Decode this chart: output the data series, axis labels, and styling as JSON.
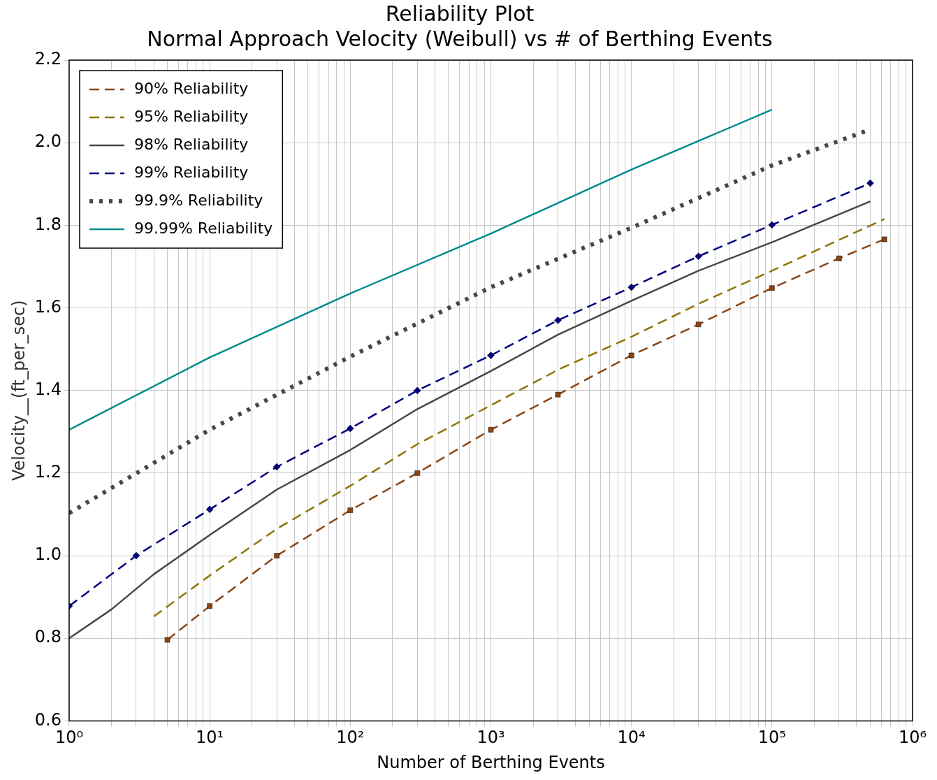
{
  "chart_data": {
    "type": "line",
    "title": "Reliability Plot",
    "subtitle": "Normal Approach Velocity (Weibull) vs # of Berthing Events",
    "xlabel": "Number of Berthing Events",
    "ylabel": "Velocity__(ft_per_sec)",
    "log": "x",
    "grid": true,
    "legend": "top left",
    "xlim": [
      1,
      1000000
    ],
    "ylim": [
      0.6,
      2.2
    ],
    "xticks": [
      {
        "value": 1,
        "label": "10⁰"
      },
      {
        "value": 2,
        "label": null
      },
      {
        "value": 3,
        "label": null
      },
      {
        "value": 4,
        "label": null
      },
      {
        "value": 5,
        "label": null
      },
      {
        "value": 6,
        "label": null
      },
      {
        "value": 7,
        "label": null
      },
      {
        "value": 8,
        "label": null
      },
      {
        "value": 9,
        "label": null
      },
      {
        "value": 10,
        "label": "10¹"
      },
      {
        "value": 20,
        "label": null
      },
      {
        "value": 30,
        "label": null
      },
      {
        "value": 40,
        "label": null
      },
      {
        "value": 50,
        "label": null
      },
      {
        "value": 60,
        "label": null
      },
      {
        "value": 70,
        "label": null
      },
      {
        "value": 80,
        "label": null
      },
      {
        "value": 90,
        "label": null
      },
      {
        "value": 100,
        "label": "10²"
      },
      {
        "value": 200,
        "label": null
      },
      {
        "value": 300,
        "label": null
      },
      {
        "value": 400,
        "label": null
      },
      {
        "value": 500,
        "label": null
      },
      {
        "value": 600,
        "label": null
      },
      {
        "value": 700,
        "label": null
      },
      {
        "value": 800,
        "label": null
      },
      {
        "value": 900,
        "label": null
      },
      {
        "value": 1000,
        "label": "10³"
      },
      {
        "value": 2000,
        "label": null
      },
      {
        "value": 3000,
        "label": null
      },
      {
        "value": 4000,
        "label": null
      },
      {
        "value": 5000,
        "label": null
      },
      {
        "value": 6000,
        "label": null
      },
      {
        "value": 7000,
        "label": null
      },
      {
        "value": 8000,
        "label": null
      },
      {
        "value": 9000,
        "label": null
      },
      {
        "value": 10000,
        "label": "10⁴"
      },
      {
        "value": 20000,
        "label": null
      },
      {
        "value": 30000,
        "label": null
      },
      {
        "value": 40000,
        "label": null
      },
      {
        "value": 50000,
        "label": null
      },
      {
        "value": 60000,
        "label": null
      },
      {
        "value": 70000,
        "label": null
      },
      {
        "value": 80000,
        "label": null
      },
      {
        "value": 90000,
        "label": null
      },
      {
        "value": 100000,
        "label": "10⁵"
      },
      {
        "value": 200000,
        "label": null
      },
      {
        "value": 300000,
        "label": null
      },
      {
        "value": 400000,
        "label": null
      },
      {
        "value": 500000,
        "label": null
      },
      {
        "value": 600000,
        "label": null
      },
      {
        "value": 700000,
        "label": null
      },
      {
        "value": 800000,
        "label": null
      },
      {
        "value": 900000,
        "label": null
      },
      {
        "value": 1000000,
        "label": "10⁶"
      }
    ],
    "yticks": [
      0.6,
      0.8,
      {
        "value": 1,
        "label": "1.0"
      },
      1.2,
      1.4,
      1.6,
      1.8,
      {
        "value": 2,
        "label": "2.0"
      },
      2.2
    ],
    "series": [
      {
        "name": "90% Reliability",
        "color": "#8b4513",
        "marker": "square",
        "line_style": "dashed",
        "x": [
          5,
          10,
          30,
          100,
          300,
          1000,
          3000,
          10000,
          30000,
          100000,
          300000,
          630000
        ],
        "values": [
          0.796,
          0.878,
          1.0,
          1.11,
          1.2,
          1.305,
          1.39,
          1.485,
          1.56,
          1.648,
          1.72,
          1.766
        ]
      },
      {
        "name": "95% Reliability",
        "color": "#8b7500",
        "marker": "none",
        "line_style": "dashed",
        "x": [
          4,
          10,
          30,
          100,
          300,
          1000,
          3000,
          10000,
          30000,
          100000,
          630000
        ],
        "values": [
          0.853,
          0.952,
          1.065,
          1.169,
          1.27,
          1.364,
          1.45,
          1.53,
          1.61,
          1.69,
          1.815
        ]
      },
      {
        "name": "98% Reliability",
        "color": "#474747",
        "marker": "none",
        "line_style": "solid",
        "x": [
          1,
          2,
          4,
          10,
          30,
          100,
          300,
          1000,
          3000,
          10000,
          30000,
          100000,
          500000
        ],
        "values": [
          0.8,
          0.87,
          0.955,
          1.05,
          1.16,
          1.256,
          1.355,
          1.447,
          1.535,
          1.617,
          1.69,
          1.759,
          1.858
        ]
      },
      {
        "name": "99% Reliability",
        "color": "#000080",
        "marker": "diamond",
        "line_style": "dashed",
        "x": [
          1,
          3,
          10,
          30,
          100,
          300,
          1000,
          3000,
          10000,
          30000,
          100000,
          500000
        ],
        "values": [
          0.878,
          1.0,
          1.112,
          1.215,
          1.308,
          1.4,
          1.485,
          1.57,
          1.65,
          1.725,
          1.801,
          1.902
        ]
      },
      {
        "name": "99.9% Reliability",
        "color": "#474747",
        "marker": "none",
        "line_style": "dotted",
        "x": [
          1,
          10,
          100,
          1000,
          10000,
          100000,
          500000
        ],
        "values": [
          1.103,
          1.305,
          1.482,
          1.65,
          1.794,
          1.945,
          2.032
        ]
      },
      {
        "name": "99.99% Reliability",
        "color": "#008b8b",
        "marker": "none",
        "line_style": "solid",
        "x": [
          1,
          10,
          100,
          1000,
          10000,
          100000
        ],
        "values": [
          1.305,
          1.48,
          1.635,
          1.78,
          1.935,
          2.08
        ]
      }
    ]
  }
}
